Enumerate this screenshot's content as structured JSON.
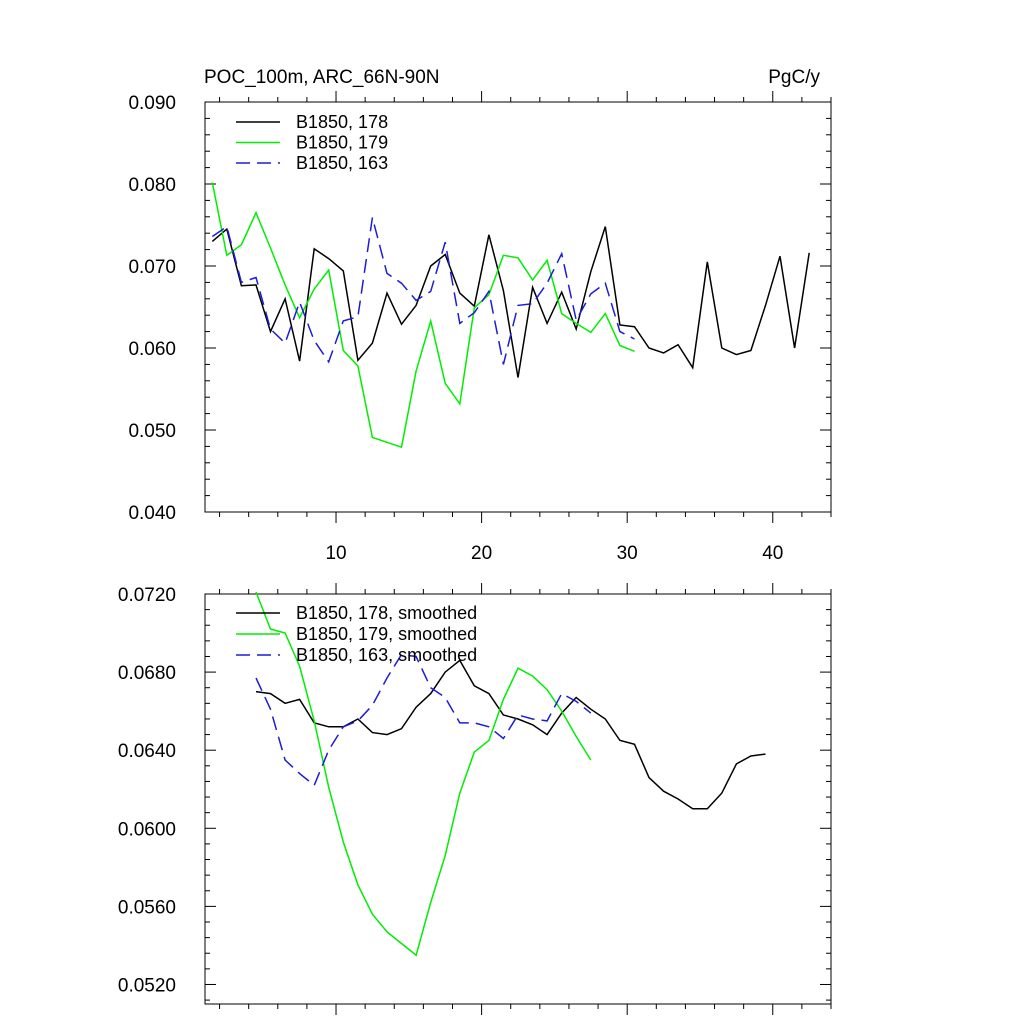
{
  "chart_data": [
    {
      "type": "line",
      "title_left": "POC_100m, ARC_66N-90N",
      "title_right": "PgC/y",
      "xlim": [
        1,
        44
      ],
      "ylim": [
        0.04,
        0.09
      ],
      "x_major_ticks": [
        10,
        20,
        30,
        40
      ],
      "x_minor_step": 2,
      "x_tick_labels": [
        "10",
        "20",
        "30",
        "40"
      ],
      "y_major_ticks": [
        0.04,
        0.05,
        0.06,
        0.07,
        0.08,
        0.09
      ],
      "y_minor_step": 0.002,
      "y_tick_labels": [
        "0.040",
        "0.050",
        "0.060",
        "0.070",
        "0.080",
        "0.090"
      ],
      "legend": [
        "B1850, 178",
        "B1850, 179",
        "B1850, 163"
      ],
      "legend_position": "top-left",
      "series": [
        {
          "name": "B1850, 178",
          "color": "#000000",
          "dash": "solid",
          "x": [
            1.5,
            2.5,
            3.5,
            4.5,
            5.5,
            6.5,
            7.5,
            8.5,
            9.5,
            10.5,
            11.5,
            12.5,
            13.5,
            14.5,
            15.5,
            16.5,
            17.5,
            18.5,
            19.5,
            20.5,
            21.5,
            22.5,
            23.5,
            24.5,
            25.5,
            26.5,
            27.5,
            28.5,
            29.5,
            30.5,
            31.5,
            32.5,
            33.5,
            34.5,
            35.5,
            36.5,
            37.5,
            38.5,
            39.5,
            40.5,
            41.5,
            42.5
          ],
          "values": [
            0.073,
            0.0745,
            0.0676,
            0.0677,
            0.062,
            0.066,
            0.0584,
            0.0721,
            0.0709,
            0.0694,
            0.0585,
            0.0606,
            0.0667,
            0.0629,
            0.0652,
            0.07,
            0.0714,
            0.0667,
            0.0651,
            0.0738,
            0.067,
            0.0564,
            0.0674,
            0.063,
            0.0668,
            0.0623,
            0.0693,
            0.0748,
            0.0628,
            0.0626,
            0.06,
            0.0594,
            0.0604,
            0.0576,
            0.0705,
            0.06,
            0.0592,
            0.0597,
            0.0652,
            0.0712,
            0.06,
            0.0716
          ]
        },
        {
          "name": "B1850, 179",
          "color": "#00ee00",
          "dash": "solid",
          "x": [
            1.5,
            2.5,
            3.5,
            4.5,
            5.5,
            6.5,
            7.5,
            8.5,
            9.5,
            10.5,
            11.5,
            12.5,
            13.5,
            14.5,
            15.5,
            16.5,
            17.5,
            18.5,
            19.5,
            20.5,
            21.5,
            22.5,
            23.5,
            24.5,
            25.5,
            26.5,
            27.5,
            28.5,
            29.5,
            30.5
          ],
          "values": [
            0.0802,
            0.0713,
            0.0726,
            0.0765,
            0.0722,
            0.0677,
            0.0637,
            0.0672,
            0.0695,
            0.0597,
            0.0578,
            0.0491,
            0.0485,
            0.0479,
            0.0572,
            0.0633,
            0.0557,
            0.0532,
            0.0649,
            0.0665,
            0.0713,
            0.071,
            0.0683,
            0.0707,
            0.0642,
            0.063,
            0.0619,
            0.0642,
            0.0603,
            0.0596
          ]
        },
        {
          "name": "B1850, 163",
          "color": "#1d1dd6",
          "dash": "dashed",
          "x": [
            1.5,
            2.5,
            3.5,
            4.5,
            5.5,
            6.5,
            7.5,
            8.5,
            9.5,
            10.5,
            11.5,
            12.5,
            13.5,
            14.5,
            15.5,
            16.5,
            17.5,
            18.5,
            19.5,
            20.5,
            21.5,
            22.5,
            23.5,
            24.5,
            25.5,
            26.5,
            27.5,
            28.5,
            29.5,
            30.5
          ],
          "values": [
            0.0736,
            0.0748,
            0.068,
            0.0686,
            0.0623,
            0.0606,
            0.0656,
            0.0609,
            0.0583,
            0.0633,
            0.0638,
            0.0759,
            0.0691,
            0.0679,
            0.0658,
            0.0669,
            0.0729,
            0.063,
            0.0643,
            0.0669,
            0.058,
            0.0652,
            0.0654,
            0.0679,
            0.0715,
            0.0634,
            0.0666,
            0.0679,
            0.062,
            0.0611
          ]
        }
      ]
    },
    {
      "type": "line",
      "xlim": [
        1,
        44
      ],
      "ylim": [
        0.051,
        0.072
      ],
      "x_major_ticks": [
        10,
        20,
        30,
        40
      ],
      "x_minor_step": 2,
      "y_major_ticks": [
        0.052,
        0.056,
        0.06,
        0.064,
        0.068,
        0.072
      ],
      "y_minor_step": 0.0008,
      "y_tick_labels": [
        "0.0520",
        "0.0560",
        "0.0600",
        "0.0640",
        "0.0680",
        "0.0720"
      ],
      "legend": [
        "B1850, 178, smoothed",
        "B1850, 179, smoothed",
        "B1850, 163, smoothed"
      ],
      "legend_position": "top-left",
      "series": [
        {
          "name": "B1850, 178, smoothed",
          "color": "#000000",
          "dash": "solid",
          "x": [
            4.5,
            5.5,
            6.5,
            7.5,
            8.5,
            9.5,
            10.5,
            11.5,
            12.5,
            13.5,
            14.5,
            15.5,
            16.5,
            17.5,
            18.5,
            19.5,
            20.5,
            21.5,
            22.5,
            23.5,
            24.5,
            25.5,
            26.5,
            27.5,
            28.5,
            29.5,
            30.5,
            31.5,
            32.5,
            33.5,
            34.5,
            35.5,
            36.5,
            37.5,
            38.5,
            39.5
          ],
          "values": [
            0.067,
            0.0669,
            0.0664,
            0.0666,
            0.0654,
            0.0652,
            0.0652,
            0.0656,
            0.0649,
            0.0648,
            0.0651,
            0.0662,
            0.0669,
            0.068,
            0.0686,
            0.0673,
            0.0669,
            0.0658,
            0.0656,
            0.0653,
            0.0648,
            0.0659,
            0.0667,
            0.0661,
            0.0656,
            0.0645,
            0.0643,
            0.0626,
            0.0619,
            0.0615,
            0.061,
            0.061,
            0.0618,
            0.0633,
            0.0637,
            0.0638
          ]
        },
        {
          "name": "B1850, 179, smoothed",
          "color": "#00ee00",
          "dash": "solid",
          "x": [
            4.5,
            5.5,
            6.5,
            7.5,
            8.5,
            9.5,
            10.5,
            11.5,
            12.5,
            13.5,
            14.5,
            15.5,
            16.5,
            17.5,
            18.5,
            19.5,
            20.5,
            21.5,
            22.5,
            23.5,
            24.5,
            25.5,
            26.5,
            27.5
          ],
          "values": [
            0.0721,
            0.0702,
            0.07,
            0.0683,
            0.0655,
            0.0621,
            0.0593,
            0.0571,
            0.0556,
            0.0547,
            0.0541,
            0.0535,
            0.0562,
            0.0586,
            0.0618,
            0.0639,
            0.0645,
            0.0666,
            0.0682,
            0.0678,
            0.0671,
            0.066,
            0.0647,
            0.0635
          ]
        },
        {
          "name": "B1850, 163, smoothed",
          "color": "#1d1dd6",
          "dash": "dashed",
          "x": [
            4.5,
            5.5,
            6.5,
            7.5,
            8.5,
            9.5,
            10.5,
            11.5,
            12.5,
            13.5,
            14.5,
            15.5,
            16.5,
            17.5,
            18.5,
            19.5,
            20.5,
            21.5,
            22.5,
            23.5,
            24.5,
            25.5,
            26.5,
            27.5
          ],
          "values": [
            0.0677,
            0.0661,
            0.0635,
            0.0628,
            0.0622,
            0.064,
            0.0652,
            0.0655,
            0.0663,
            0.0677,
            0.0689,
            0.0688,
            0.0672,
            0.0667,
            0.0654,
            0.0654,
            0.0652,
            0.0646,
            0.0658,
            0.0656,
            0.0655,
            0.0669,
            0.0665,
            0.0659
          ]
        }
      ]
    }
  ]
}
